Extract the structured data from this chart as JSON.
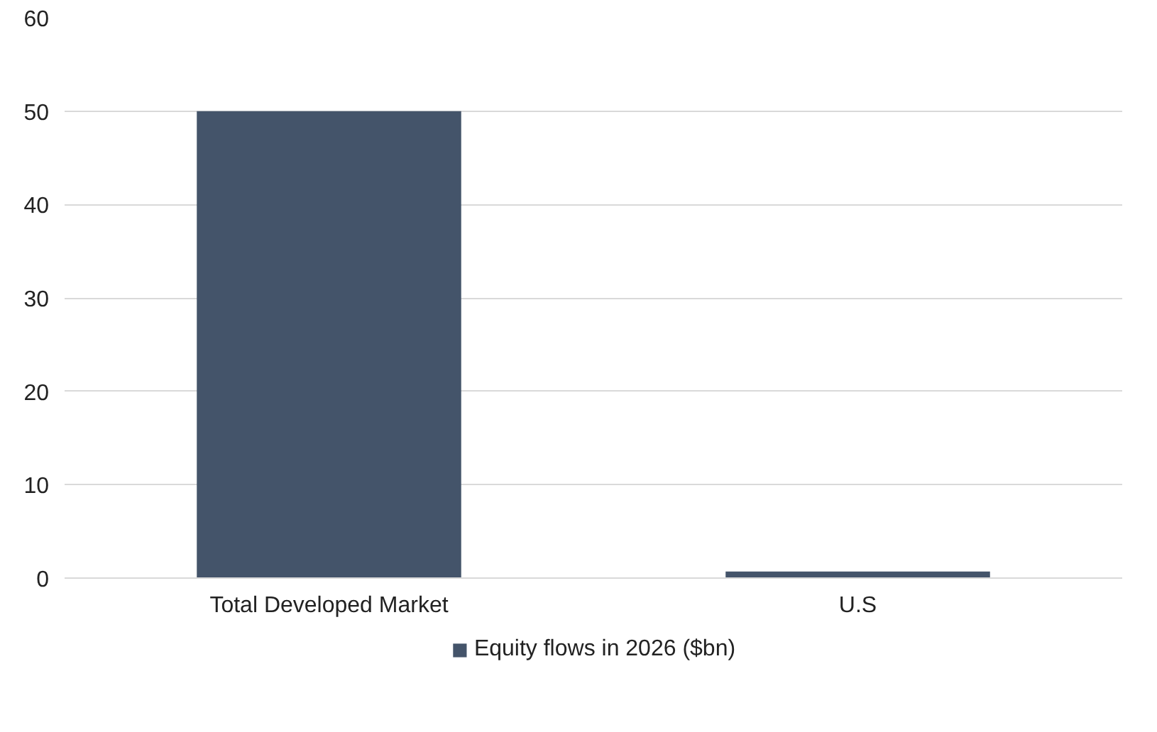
{
  "chart_data": {
    "type": "bar",
    "categories": [
      "Total Developed Market",
      "U.S"
    ],
    "series": [
      {
        "name": "Equity flows in 2026 ($bn)",
        "color": "#44546a",
        "values": [
          50,
          0.7
        ]
      }
    ],
    "ylim": [
      0,
      60
    ],
    "yticks": [
      0,
      10,
      20,
      30,
      40,
      50,
      60
    ],
    "grid": "y",
    "legend": "bottom"
  }
}
